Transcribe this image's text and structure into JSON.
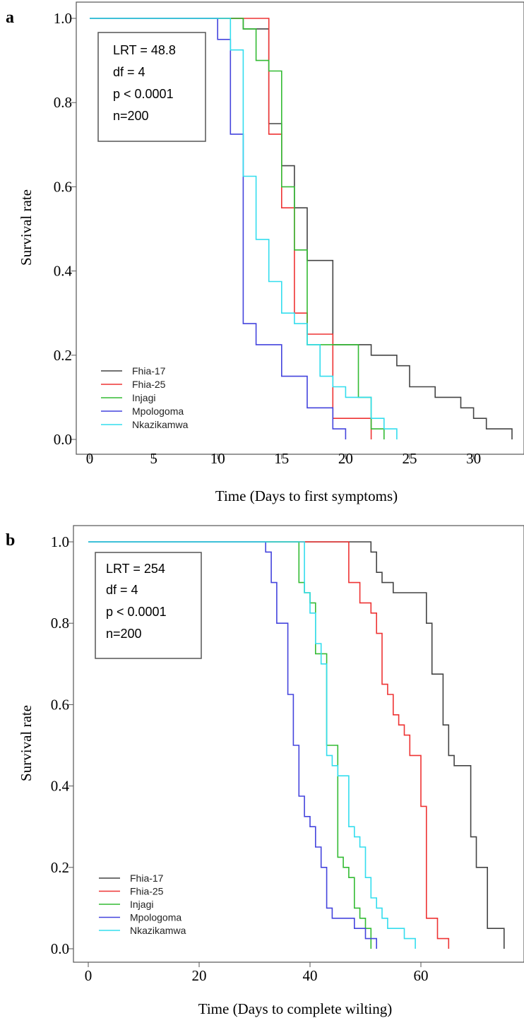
{
  "chart_data": [
    {
      "panel": "a",
      "type": "line",
      "step": true,
      "xlabel": "Time (Days to first symptoms)",
      "ylabel": "Survival rate",
      "xlim": [
        0,
        34
      ],
      "ylim": [
        0,
        1
      ],
      "xticks": [
        0,
        5,
        10,
        15,
        20,
        25,
        30
      ],
      "yticks": [
        "0.0",
        "0.2",
        "0.4",
        "0.6",
        "0.8",
        "1.0"
      ],
      "stats": [
        "LRT = 48.8",
        "df = 4",
        "p < 0.0001",
        "n=200"
      ],
      "legend_position": "bottom-left",
      "series": [
        {
          "name": "Fhia-17",
          "color": "#444444",
          "points": [
            [
              0,
              1
            ],
            [
              12,
              1
            ],
            [
              12,
              0.975
            ],
            [
              14,
              0.975
            ],
            [
              14,
              0.75
            ],
            [
              15,
              0.75
            ],
            [
              15,
              0.65
            ],
            [
              16,
              0.65
            ],
            [
              16,
              0.55
            ],
            [
              17,
              0.55
            ],
            [
              17,
              0.425
            ],
            [
              19,
              0.425
            ],
            [
              19,
              0.225
            ],
            [
              21,
              0.225
            ],
            [
              21,
              0.225
            ],
            [
              22,
              0.225
            ],
            [
              22,
              0.2
            ],
            [
              24,
              0.2
            ],
            [
              24,
              0.175
            ],
            [
              25,
              0.175
            ],
            [
              25,
              0.125
            ],
            [
              26,
              0.125
            ],
            [
              26,
              0.125
            ],
            [
              27,
              0.125
            ],
            [
              27,
              0.1
            ],
            [
              29,
              0.1
            ],
            [
              29,
              0.075
            ],
            [
              30,
              0.075
            ],
            [
              30,
              0.05
            ],
            [
              31,
              0.05
            ],
            [
              31,
              0.025
            ],
            [
              33,
              0.025
            ],
            [
              33,
              0
            ]
          ]
        },
        {
          "name": "Fhia-25",
          "color": "#ee3333",
          "points": [
            [
              0,
              1
            ],
            [
              14,
              1
            ],
            [
              14,
              0.725
            ],
            [
              15,
              0.725
            ],
            [
              15,
              0.55
            ],
            [
              16,
              0.55
            ],
            [
              16,
              0.3
            ],
            [
              17,
              0.3
            ],
            [
              17,
              0.25
            ],
            [
              19,
              0.25
            ],
            [
              19,
              0.05
            ],
            [
              22,
              0.05
            ],
            [
              22,
              0
            ]
          ]
        },
        {
          "name": "Injagi",
          "color": "#33bb33",
          "points": [
            [
              0,
              1
            ],
            [
              12,
              1
            ],
            [
              12,
              0.975
            ],
            [
              13,
              0.975
            ],
            [
              13,
              0.9
            ],
            [
              14,
              0.9
            ],
            [
              14,
              0.875
            ],
            [
              15,
              0.875
            ],
            [
              15,
              0.6
            ],
            [
              16,
              0.6
            ],
            [
              16,
              0.45
            ],
            [
              17,
              0.45
            ],
            [
              17,
              0.225
            ],
            [
              21,
              0.225
            ],
            [
              21,
              0.1
            ],
            [
              22,
              0.1
            ],
            [
              22,
              0.025
            ],
            [
              23,
              0.025
            ],
            [
              23,
              0
            ]
          ]
        },
        {
          "name": "Mpologoma",
          "color": "#4444dd",
          "points": [
            [
              0,
              1
            ],
            [
              10,
              1
            ],
            [
              10,
              0.95
            ],
            [
              11,
              0.95
            ],
            [
              11,
              0.725
            ],
            [
              12,
              0.725
            ],
            [
              12,
              0.275
            ],
            [
              13,
              0.275
            ],
            [
              13,
              0.225
            ],
            [
              15,
              0.225
            ],
            [
              15,
              0.15
            ],
            [
              17,
              0.15
            ],
            [
              17,
              0.075
            ],
            [
              19,
              0.075
            ],
            [
              19,
              0.025
            ],
            [
              20,
              0.025
            ],
            [
              20,
              0
            ]
          ]
        },
        {
          "name": "Nkazikamwa",
          "color": "#33ddee",
          "points": [
            [
              0,
              1
            ],
            [
              11,
              1
            ],
            [
              11,
              0.925
            ],
            [
              12,
              0.925
            ],
            [
              12,
              0.625
            ],
            [
              13,
              0.625
            ],
            [
              13,
              0.475
            ],
            [
              14,
              0.475
            ],
            [
              14,
              0.375
            ],
            [
              15,
              0.375
            ],
            [
              15,
              0.3
            ],
            [
              16,
              0.3
            ],
            [
              16,
              0.275
            ],
            [
              17,
              0.275
            ],
            [
              17,
              0.225
            ],
            [
              18,
              0.225
            ],
            [
              18,
              0.15
            ],
            [
              19,
              0.15
            ],
            [
              19,
              0.125
            ],
            [
              20,
              0.125
            ],
            [
              20,
              0.1
            ],
            [
              22,
              0.1
            ],
            [
              22,
              0.05
            ],
            [
              23,
              0.05
            ],
            [
              23,
              0.025
            ],
            [
              24,
              0.025
            ],
            [
              24,
              0
            ]
          ]
        }
      ]
    },
    {
      "panel": "b",
      "type": "line",
      "step": true,
      "xlabel": "Time (Days to complete wilting)",
      "ylabel": "Survival rate",
      "xlim": [
        0,
        77
      ],
      "ylim": [
        0,
        1
      ],
      "xticks": [
        0,
        20,
        40,
        60
      ],
      "yticks": [
        "0.0",
        "0.2",
        "0.4",
        "0.6",
        "0.8",
        "1.0"
      ],
      "stats": [
        "LRT = 254",
        "df = 4",
        "p < 0.0001",
        "n=200"
      ],
      "legend_position": "bottom-left",
      "series": [
        {
          "name": "Fhia-17",
          "color": "#444444",
          "points": [
            [
              0,
              1
            ],
            [
              51,
              1
            ],
            [
              51,
              0.975
            ],
            [
              52,
              0.975
            ],
            [
              52,
              0.925
            ],
            [
              53,
              0.925
            ],
            [
              53,
              0.9
            ],
            [
              55,
              0.9
            ],
            [
              55,
              0.875
            ],
            [
              61,
              0.875
            ],
            [
              61,
              0.8
            ],
            [
              62,
              0.8
            ],
            [
              62,
              0.675
            ],
            [
              64,
              0.675
            ],
            [
              64,
              0.55
            ],
            [
              65,
              0.55
            ],
            [
              65,
              0.475
            ],
            [
              66,
              0.475
            ],
            [
              66,
              0.45
            ],
            [
              69,
              0.45
            ],
            [
              69,
              0.275
            ],
            [
              70,
              0.275
            ],
            [
              70,
              0.2
            ],
            [
              72,
              0.2
            ],
            [
              72,
              0.05
            ],
            [
              75,
              0.05
            ],
            [
              75,
              0
            ]
          ]
        },
        {
          "name": "Fhia-25",
          "color": "#ee3333",
          "points": [
            [
              0,
              1
            ],
            [
              47,
              1
            ],
            [
              47,
              0.9
            ],
            [
              49,
              0.9
            ],
            [
              49,
              0.85
            ],
            [
              51,
              0.85
            ],
            [
              51,
              0.825
            ],
            [
              52,
              0.825
            ],
            [
              52,
              0.775
            ],
            [
              53,
              0.775
            ],
            [
              53,
              0.65
            ],
            [
              54,
              0.65
            ],
            [
              54,
              0.625
            ],
            [
              55,
              0.625
            ],
            [
              55,
              0.575
            ],
            [
              56,
              0.575
            ],
            [
              56,
              0.55
            ],
            [
              57,
              0.55
            ],
            [
              57,
              0.525
            ],
            [
              58,
              0.525
            ],
            [
              58,
              0.475
            ],
            [
              60,
              0.475
            ],
            [
              60,
              0.35
            ],
            [
              61,
              0.35
            ],
            [
              61,
              0.075
            ],
            [
              63,
              0.075
            ],
            [
              63,
              0.025
            ],
            [
              65,
              0.025
            ],
            [
              65,
              0
            ]
          ]
        },
        {
          "name": "Injagi",
          "color": "#33bb33",
          "points": [
            [
              0,
              1
            ],
            [
              38,
              1
            ],
            [
              38,
              0.9
            ],
            [
              39,
              0.9
            ],
            [
              39,
              0.875
            ],
            [
              40,
              0.875
            ],
            [
              40,
              0.85
            ],
            [
              41,
              0.85
            ],
            [
              41,
              0.725
            ],
            [
              43,
              0.725
            ],
            [
              43,
              0.5
            ],
            [
              45,
              0.5
            ],
            [
              45,
              0.225
            ],
            [
              46,
              0.225
            ],
            [
              46,
              0.2
            ],
            [
              47,
              0.2
            ],
            [
              47,
              0.175
            ],
            [
              48,
              0.175
            ],
            [
              48,
              0.1
            ],
            [
              49,
              0.1
            ],
            [
              49,
              0.075
            ],
            [
              50,
              0.075
            ],
            [
              50,
              0.05
            ],
            [
              51,
              0.05
            ],
            [
              51,
              0
            ]
          ]
        },
        {
          "name": "Mpologoma",
          "color": "#4444dd",
          "points": [
            [
              0,
              1
            ],
            [
              32,
              1
            ],
            [
              32,
              0.975
            ],
            [
              33,
              0.975
            ],
            [
              33,
              0.9
            ],
            [
              34,
              0.9
            ],
            [
              34,
              0.8
            ],
            [
              36,
              0.8
            ],
            [
              36,
              0.625
            ],
            [
              37,
              0.625
            ],
            [
              37,
              0.5
            ],
            [
              38,
              0.5
            ],
            [
              38,
              0.375
            ],
            [
              39,
              0.375
            ],
            [
              39,
              0.325
            ],
            [
              40,
              0.325
            ],
            [
              40,
              0.3
            ],
            [
              41,
              0.3
            ],
            [
              41,
              0.25
            ],
            [
              42,
              0.25
            ],
            [
              42,
              0.2
            ],
            [
              43,
              0.2
            ],
            [
              43,
              0.1
            ],
            [
              44,
              0.1
            ],
            [
              44,
              0.075
            ],
            [
              48,
              0.075
            ],
            [
              48,
              0.05
            ],
            [
              50,
              0.05
            ],
            [
              50,
              0.025
            ],
            [
              52,
              0.025
            ],
            [
              52,
              0
            ]
          ]
        },
        {
          "name": "Nkazikamwa",
          "color": "#33ddee",
          "points": [
            [
              0,
              1
            ],
            [
              39,
              1
            ],
            [
              39,
              0.875
            ],
            [
              40,
              0.875
            ],
            [
              40,
              0.825
            ],
            [
              41,
              0.825
            ],
            [
              41,
              0.75
            ],
            [
              42,
              0.75
            ],
            [
              42,
              0.7
            ],
            [
              43,
              0.7
            ],
            [
              43,
              0.475
            ],
            [
              44,
              0.475
            ],
            [
              44,
              0.45
            ],
            [
              45,
              0.45
            ],
            [
              45,
              0.425
            ],
            [
              47,
              0.425
            ],
            [
              47,
              0.3
            ],
            [
              48,
              0.3
            ],
            [
              48,
              0.275
            ],
            [
              49,
              0.275
            ],
            [
              49,
              0.25
            ],
            [
              50,
              0.25
            ],
            [
              50,
              0.175
            ],
            [
              51,
              0.175
            ],
            [
              51,
              0.125
            ],
            [
              52,
              0.125
            ],
            [
              52,
              0.1
            ],
            [
              53,
              0.1
            ],
            [
              53,
              0.075
            ],
            [
              54,
              0.075
            ],
            [
              54,
              0.05
            ],
            [
              57,
              0.05
            ],
            [
              57,
              0.025
            ],
            [
              59,
              0.025
            ],
            [
              59,
              0
            ]
          ]
        }
      ]
    }
  ]
}
